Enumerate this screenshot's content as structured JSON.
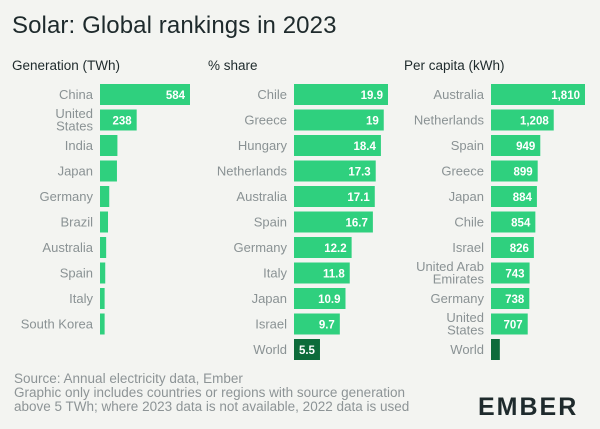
{
  "title": "Solar: Global rankings in 2023",
  "colors": {
    "bar": "#2fd07e",
    "highlight": "#0d6b3a",
    "label": "#8a9294",
    "value": "#ffffff",
    "title": "#1e2a2c"
  },
  "chart_data": [
    {
      "type": "bar",
      "orientation": "horizontal",
      "title": "Generation (TWh)",
      "categories": [
        "China",
        "United\nStates",
        "India",
        "Japan",
        "Germany",
        "Brazil",
        "Australia",
        "Spain",
        "Italy",
        "South Korea"
      ],
      "values": [
        584,
        238,
        113,
        110,
        60,
        52,
        40,
        34,
        30,
        30
      ],
      "value_labels": [
        "584",
        "238",
        "",
        "",
        "",
        "",
        "",
        "",
        "",
        ""
      ],
      "xlim": [
        0,
        584
      ],
      "highlight": []
    },
    {
      "type": "bar",
      "orientation": "horizontal",
      "title": "% share",
      "categories": [
        "Chile",
        "Greece",
        "Hungary",
        "Netherlands",
        "Australia",
        "Spain",
        "Germany",
        "Italy",
        "Japan",
        "Israel",
        "World"
      ],
      "values": [
        19.9,
        19,
        18.4,
        17.3,
        17.1,
        16.7,
        12.2,
        11.8,
        10.9,
        9.7,
        5.5
      ],
      "value_labels": [
        "19.9",
        "19",
        "18.4",
        "17.3",
        "17.1",
        "16.7",
        "12.2",
        "11.8",
        "10.9",
        "9.7",
        "5.5"
      ],
      "xlim": [
        0,
        19.9
      ],
      "highlight": [
        "World"
      ]
    },
    {
      "type": "bar",
      "orientation": "horizontal",
      "title": "Per capita (kWh)",
      "categories": [
        "Australia",
        "Netherlands",
        "Spain",
        "Greece",
        "Japan",
        "Chile",
        "Israel",
        "United Arab\nEmirates",
        "Germany",
        "United\nStates",
        "World"
      ],
      "values": [
        1810,
        1208,
        949,
        899,
        884,
        854,
        826,
        743,
        738,
        707,
        170
      ],
      "value_labels": [
        "1,810",
        "1,208",
        "949",
        "899",
        "884",
        "854",
        "826",
        "743",
        "738",
        "707",
        ""
      ],
      "xlim": [
        0,
        1810
      ],
      "highlight": [
        "World"
      ]
    }
  ],
  "footer": {
    "line1": "Source: Annual electricity data, Ember",
    "line2": "Graphic only includes countries or regions with source generation",
    "line3": "above 5 TWh; where 2023 data is not available, 2022 data is used"
  },
  "logo": "EMBER"
}
